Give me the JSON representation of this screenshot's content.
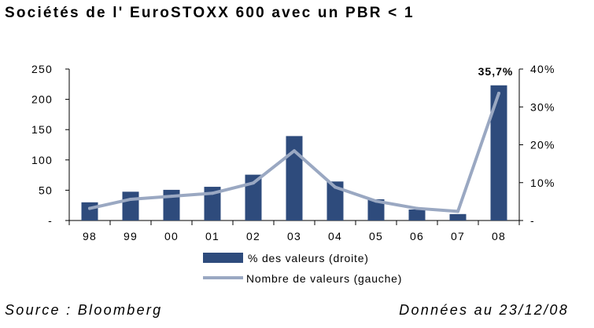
{
  "title": "Sociétés de l' EuroSTOXX 600 avec un PBR < 1",
  "source": "Source : Bloomberg",
  "date_note": "Données au 23/12/08",
  "colors": {
    "bar": "#2e4b7c",
    "line": "#9aa8c2",
    "axis": "#000000"
  },
  "chart_data": {
    "type": "bar",
    "categories": [
      "98",
      "99",
      "00",
      "01",
      "02",
      "03",
      "04",
      "05",
      "06",
      "07",
      "08"
    ],
    "series": [
      {
        "name": "%   des valeurs (droite)",
        "type": "bar",
        "axis": "right",
        "values": [
          4.8,
          7.6,
          8.1,
          8.9,
          12.1,
          22.3,
          10.3,
          5.6,
          2.9,
          1.7,
          35.7
        ]
      },
      {
        "name": "Nombre de valeurs (gauche)",
        "type": "line",
        "axis": "left",
        "values": [
          20,
          35,
          40,
          45,
          62,
          115,
          55,
          32,
          20,
          15,
          210
        ]
      }
    ],
    "ylim_left": [
      0,
      250
    ],
    "yticks_left": [
      "250",
      "200",
      "150",
      "100",
      "50",
      "-"
    ],
    "ylim_right": [
      0,
      40
    ],
    "yticks_right": [
      "40%",
      "30%",
      "20%",
      "10%",
      "-"
    ],
    "annotations": [
      {
        "category": "08",
        "text": "35,7%"
      }
    ],
    "grid": false,
    "legend_position": "bottom"
  }
}
